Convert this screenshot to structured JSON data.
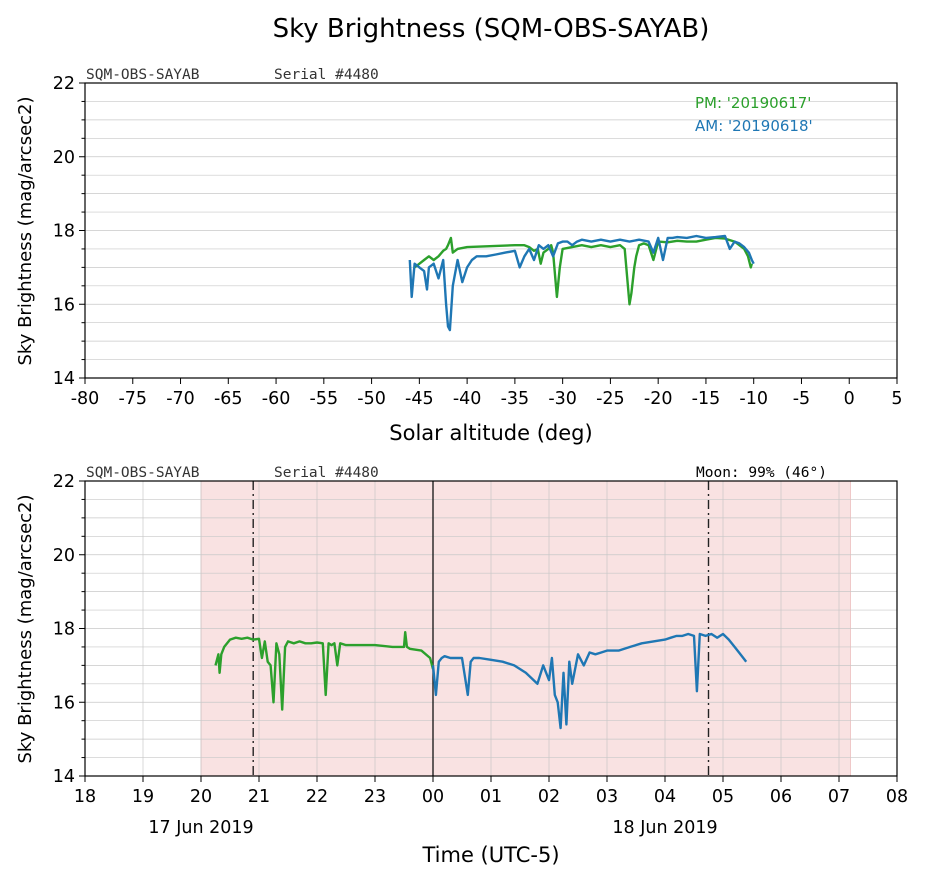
{
  "figure": {
    "title": "Sky Brightness (SQM-OBS-SAYAB)",
    "instrument": "SQM-OBS-SAYAB",
    "serial": "Serial #4480",
    "moon": "Moon: 99% (46°)"
  },
  "colors": {
    "pm": "#2ca02c",
    "am": "#1f77b4",
    "night_shade": "#f9e2e2",
    "grid": "#c8c8c8"
  },
  "chart_data": [
    {
      "type": "line",
      "title": "",
      "xlabel": "Solar altitude (deg)",
      "ylabel": "Sky Brightness (mag/arcsec2)",
      "xlim": [
        -80,
        5
      ],
      "ylim": [
        14,
        22
      ],
      "x_ticks": [
        -80,
        -75,
        -70,
        -65,
        -60,
        -55,
        -50,
        -45,
        -40,
        -35,
        -30,
        -25,
        -20,
        -15,
        -10,
        -5,
        0,
        5
      ],
      "x_tick_labels": [
        "-80",
        "-75",
        "-70",
        "-65",
        "-60",
        "-55",
        "-50",
        "-45",
        "-40",
        "-35",
        "-30",
        "-25",
        "-20",
        "-15",
        "-10",
        "-5",
        "0",
        "5"
      ],
      "y_ticks": [
        14,
        16,
        18,
        20,
        22
      ],
      "y_tick_labels": [
        "14",
        "16",
        "18",
        "20",
        "22"
      ],
      "grid": true,
      "legend": [
        "PM: '20190617'",
        "AM: '20190618'"
      ],
      "legend_placement": "top-right",
      "series": [
        {
          "name": "PM: '20190617'",
          "color": "#2ca02c",
          "x": [
            -10.2,
            -10.3,
            -10.6,
            -11,
            -11.5,
            -12,
            -13,
            -14,
            -15,
            -16,
            -17,
            -18,
            -19,
            -20,
            -20.5,
            -21,
            -21.5,
            -22,
            -22.3,
            -22.5,
            -22.8,
            -23,
            -23.5,
            -24,
            -25,
            -26,
            -27,
            -28,
            -29,
            -30,
            -30.3,
            -30.6,
            -31,
            -31.2,
            -31.5,
            -32,
            -32.3,
            -32.6,
            -33,
            -33.5,
            -34,
            -35,
            -40,
            -41,
            -41.5,
            -41.7,
            -42,
            -42.2,
            -42.5,
            -43,
            -43.5,
            -44,
            -44.5,
            -45,
            -45.5
          ],
          "y": [
            17.1,
            17.0,
            17.3,
            17.5,
            17.6,
            17.7,
            17.78,
            17.8,
            17.75,
            17.7,
            17.7,
            17.72,
            17.68,
            17.7,
            17.2,
            17.6,
            17.65,
            17.6,
            17.3,
            17.0,
            16.3,
            16.0,
            17.5,
            17.6,
            17.55,
            17.6,
            17.55,
            17.6,
            17.55,
            17.5,
            17.0,
            16.2,
            17.4,
            17.6,
            17.5,
            17.4,
            17.1,
            17.5,
            17.45,
            17.55,
            17.6,
            17.6,
            17.55,
            17.5,
            17.4,
            17.8,
            17.6,
            17.5,
            17.45,
            17.3,
            17.2,
            17.3,
            17.2,
            17.1,
            17.0
          ]
        },
        {
          "name": "AM: '20190618'",
          "color": "#1f77b4",
          "x": [
            -46,
            -45.8,
            -45.5,
            -45,
            -44.5,
            -44.2,
            -44,
            -43.5,
            -43,
            -42.5,
            -42.2,
            -42,
            -41.8,
            -41.5,
            -41,
            -40.5,
            -40,
            -39.5,
            -39,
            -38,
            -37,
            -36,
            -35,
            -34.5,
            -34,
            -33.5,
            -33,
            -32.5,
            -32,
            -31.5,
            -31,
            -30.5,
            -30,
            -29.5,
            -29,
            -28.5,
            -28,
            -27,
            -26,
            -25,
            -24,
            -23,
            -22,
            -21,
            -20.5,
            -20,
            -19.5,
            -19,
            -18.5,
            -18,
            -17,
            -16,
            -15,
            -14,
            -13,
            -12.5,
            -12,
            -11.5,
            -11,
            -10.5,
            -10.2,
            -10
          ],
          "y": [
            17.2,
            16.2,
            17.1,
            17.0,
            16.9,
            16.4,
            17.0,
            17.1,
            16.7,
            17.2,
            16.0,
            15.4,
            15.3,
            16.5,
            17.2,
            16.6,
            17.0,
            17.2,
            17.3,
            17.3,
            17.35,
            17.4,
            17.45,
            17.0,
            17.3,
            17.5,
            17.2,
            17.6,
            17.5,
            17.6,
            17.3,
            17.65,
            17.7,
            17.7,
            17.6,
            17.7,
            17.75,
            17.7,
            17.75,
            17.7,
            17.75,
            17.7,
            17.75,
            17.7,
            17.4,
            17.8,
            17.2,
            17.8,
            17.8,
            17.82,
            17.8,
            17.85,
            17.8,
            17.82,
            17.85,
            17.5,
            17.7,
            17.65,
            17.55,
            17.4,
            17.2,
            17.1
          ]
        }
      ]
    },
    {
      "type": "line",
      "title": "",
      "xlabel": "Time (UTC-5)",
      "ylabel": "Sky Brightness (mag/arcsec2)",
      "xlim": [
        18,
        32
      ],
      "ylim": [
        14,
        22
      ],
      "x_ticks": [
        18,
        19,
        20,
        21,
        22,
        23,
        24,
        25,
        26,
        27,
        28,
        29,
        30,
        31,
        32
      ],
      "x_tick_labels": [
        "18",
        "19",
        "20",
        "21",
        "22",
        "23",
        "00",
        "01",
        "02",
        "03",
        "04",
        "05",
        "06",
        "07",
        "08"
      ],
      "date_labels": [
        {
          "at": 20.0,
          "text": "17 Jun 2019"
        },
        {
          "at": 28.0,
          "text": "18 Jun 2019"
        }
      ],
      "y_ticks": [
        14,
        16,
        18,
        20,
        22
      ],
      "y_tick_labels": [
        "14",
        "16",
        "18",
        "20",
        "22"
      ],
      "grid": true,
      "night_span": [
        20.0,
        31.2
      ],
      "twilight_lines": [
        20.9,
        28.75
      ],
      "midnight_line": 24.0,
      "series": [
        {
          "name": "PM: '20190617'",
          "color": "#2ca02c",
          "x": [
            20.25,
            20.3,
            20.32,
            20.35,
            20.4,
            20.45,
            20.5,
            20.6,
            20.7,
            20.8,
            20.9,
            21.0,
            21.05,
            21.1,
            21.15,
            21.2,
            21.25,
            21.3,
            21.35,
            21.4,
            21.45,
            21.5,
            21.6,
            21.7,
            21.8,
            21.9,
            22.0,
            22.1,
            22.15,
            22.2,
            22.25,
            22.3,
            22.35,
            22.4,
            22.5,
            22.7,
            23.0,
            23.3,
            23.5,
            23.52,
            23.55,
            23.6,
            23.8,
            23.95,
            24.0
          ],
          "y": [
            17.0,
            17.3,
            16.8,
            17.3,
            17.5,
            17.6,
            17.7,
            17.75,
            17.72,
            17.75,
            17.7,
            17.72,
            17.2,
            17.65,
            17.1,
            17.0,
            16.0,
            17.6,
            17.3,
            15.8,
            17.5,
            17.65,
            17.6,
            17.65,
            17.6,
            17.6,
            17.62,
            17.6,
            16.2,
            17.6,
            17.55,
            17.6,
            17.0,
            17.6,
            17.55,
            17.55,
            17.55,
            17.5,
            17.5,
            17.9,
            17.5,
            17.45,
            17.4,
            17.2,
            16.9
          ]
        },
        {
          "name": "AM: '20190618'",
          "color": "#1f77b4",
          "x": [
            24.0,
            24.05,
            24.1,
            24.15,
            24.2,
            24.3,
            24.5,
            24.6,
            24.65,
            24.7,
            24.8,
            25.0,
            25.2,
            25.4,
            25.6,
            25.8,
            25.9,
            26.0,
            26.05,
            26.1,
            26.15,
            26.2,
            26.25,
            26.3,
            26.35,
            26.4,
            26.5,
            26.6,
            26.7,
            26.8,
            26.9,
            27.0,
            27.2,
            27.4,
            27.6,
            27.8,
            28.0,
            28.1,
            28.2,
            28.3,
            28.4,
            28.5,
            28.55,
            28.6,
            28.7,
            28.8,
            28.9,
            29.0,
            29.1,
            29.2,
            29.3,
            29.4
          ],
          "y": [
            17.0,
            16.2,
            17.1,
            17.2,
            17.25,
            17.2,
            17.2,
            16.2,
            17.1,
            17.2,
            17.2,
            17.15,
            17.1,
            17.0,
            16.8,
            16.5,
            17.0,
            16.6,
            17.2,
            16.2,
            16.0,
            15.3,
            16.8,
            15.4,
            17.1,
            16.5,
            17.3,
            17.0,
            17.35,
            17.3,
            17.35,
            17.4,
            17.4,
            17.5,
            17.6,
            17.65,
            17.7,
            17.75,
            17.8,
            17.8,
            17.85,
            17.8,
            16.3,
            17.85,
            17.8,
            17.85,
            17.75,
            17.85,
            17.7,
            17.5,
            17.3,
            17.1
          ]
        }
      ]
    }
  ]
}
